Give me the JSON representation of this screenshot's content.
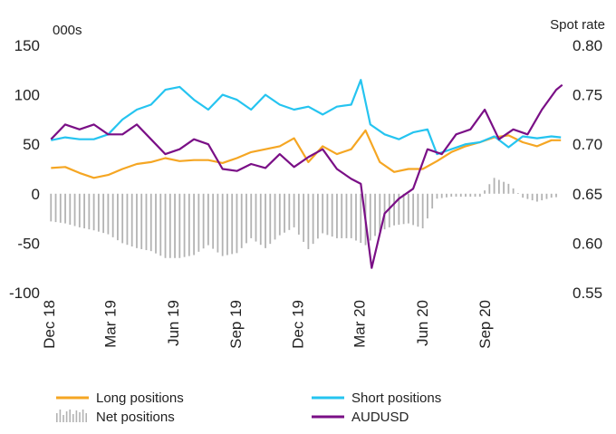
{
  "chart_data": {
    "type": "line",
    "left_axis_label": "000s",
    "right_axis_label": "Spot rate",
    "left_ylim": [
      -100,
      150
    ],
    "right_ylim": [
      0.55,
      0.8
    ],
    "left_ticks": [
      "150",
      "100",
      "50",
      "0",
      "-50",
      "-100"
    ],
    "right_ticks": [
      "0.80",
      "0.75",
      "0.70",
      "0.65",
      "0.60",
      "0.55"
    ],
    "xlim": [
      "2018-12-01",
      "2020-12-31"
    ],
    "x_ticks": [
      {
        "date": "2018-12-01",
        "label": "Dec 18"
      },
      {
        "date": "2019-03-01",
        "label": "Mar 19"
      },
      {
        "date": "2019-06-01",
        "label": "Jun 19"
      },
      {
        "date": "2019-09-01",
        "label": "Sep 19"
      },
      {
        "date": "2019-12-01",
        "label": "Dec 19"
      },
      {
        "date": "2020-03-01",
        "label": "Mar 20"
      },
      {
        "date": "2020-06-01",
        "label": "Jun 20"
      },
      {
        "date": "2020-09-01",
        "label": "Sep 20"
      }
    ],
    "grid": false,
    "legend_position": "bottom",
    "series": [
      {
        "name": "Long positions",
        "axis": "left",
        "style": "line",
        "color": "#f5a623",
        "points": [
          [
            "2018-12-04",
            26
          ],
          [
            "2018-12-25",
            27
          ],
          [
            "2019-01-15",
            21
          ],
          [
            "2019-02-05",
            16
          ],
          [
            "2019-02-26",
            19
          ],
          [
            "2019-03-19",
            25
          ],
          [
            "2019-04-09",
            30
          ],
          [
            "2019-04-30",
            32
          ],
          [
            "2019-05-21",
            36
          ],
          [
            "2019-06-11",
            33
          ],
          [
            "2019-07-02",
            34
          ],
          [
            "2019-07-23",
            34
          ],
          [
            "2019-08-13",
            31
          ],
          [
            "2019-09-03",
            36
          ],
          [
            "2019-09-24",
            42
          ],
          [
            "2019-10-15",
            45
          ],
          [
            "2019-11-05",
            48
          ],
          [
            "2019-11-26",
            56
          ],
          [
            "2019-12-17",
            32
          ],
          [
            "2020-01-07",
            48
          ],
          [
            "2020-01-28",
            40
          ],
          [
            "2020-02-18",
            45
          ],
          [
            "2020-03-10",
            64
          ],
          [
            "2020-03-31",
            32
          ],
          [
            "2020-04-21",
            22
          ],
          [
            "2020-05-12",
            25
          ],
          [
            "2020-06-02",
            25
          ],
          [
            "2020-06-23",
            33
          ],
          [
            "2020-07-14",
            42
          ],
          [
            "2020-08-04",
            48
          ],
          [
            "2020-08-25",
            52
          ],
          [
            "2020-09-15",
            57
          ],
          [
            "2020-10-06",
            59
          ],
          [
            "2020-10-27",
            52
          ],
          [
            "2020-11-17",
            48
          ],
          [
            "2020-12-08",
            54
          ],
          [
            "2020-12-22",
            54
          ]
        ]
      },
      {
        "name": "Short positions",
        "axis": "left",
        "style": "line",
        "color": "#25c4f0",
        "points": [
          [
            "2018-12-04",
            54
          ],
          [
            "2018-12-25",
            57
          ],
          [
            "2019-01-15",
            55
          ],
          [
            "2019-02-05",
            55
          ],
          [
            "2019-02-26",
            60
          ],
          [
            "2019-03-19",
            75
          ],
          [
            "2019-04-09",
            85
          ],
          [
            "2019-04-30",
            90
          ],
          [
            "2019-05-21",
            105
          ],
          [
            "2019-06-11",
            108
          ],
          [
            "2019-07-02",
            95
          ],
          [
            "2019-07-23",
            85
          ],
          [
            "2019-08-13",
            100
          ],
          [
            "2019-09-03",
            95
          ],
          [
            "2019-09-24",
            85
          ],
          [
            "2019-10-15",
            100
          ],
          [
            "2019-11-05",
            90
          ],
          [
            "2019-11-26",
            85
          ],
          [
            "2019-12-17",
            88
          ],
          [
            "2020-01-07",
            80
          ],
          [
            "2020-01-28",
            88
          ],
          [
            "2020-02-18",
            90
          ],
          [
            "2020-03-03",
            115
          ],
          [
            "2020-03-17",
            70
          ],
          [
            "2020-04-07",
            60
          ],
          [
            "2020-04-28",
            55
          ],
          [
            "2020-05-19",
            62
          ],
          [
            "2020-06-09",
            65
          ],
          [
            "2020-06-23",
            40
          ],
          [
            "2020-07-14",
            45
          ],
          [
            "2020-08-04",
            50
          ],
          [
            "2020-08-25",
            52
          ],
          [
            "2020-09-15",
            58
          ],
          [
            "2020-10-06",
            47
          ],
          [
            "2020-10-27",
            58
          ],
          [
            "2020-11-17",
            56
          ],
          [
            "2020-12-08",
            58
          ],
          [
            "2020-12-22",
            57
          ]
        ]
      },
      {
        "name": "Net positions",
        "axis": "left",
        "style": "bar",
        "color": "#b3b3b3",
        "points": [
          [
            "2018-12-04",
            -28
          ],
          [
            "2018-12-25",
            -30
          ],
          [
            "2019-01-15",
            -34
          ],
          [
            "2019-02-05",
            -37
          ],
          [
            "2019-02-26",
            -41
          ],
          [
            "2019-03-19",
            -50
          ],
          [
            "2019-04-09",
            -55
          ],
          [
            "2019-04-30",
            -58
          ],
          [
            "2019-05-21",
            -65
          ],
          [
            "2019-06-11",
            -65
          ],
          [
            "2019-07-02",
            -62
          ],
          [
            "2019-07-23",
            -52
          ],
          [
            "2019-08-13",
            -63
          ],
          [
            "2019-09-03",
            -60
          ],
          [
            "2019-09-24",
            -45
          ],
          [
            "2019-10-15",
            -55
          ],
          [
            "2019-11-05",
            -42
          ],
          [
            "2019-11-26",
            -34
          ],
          [
            "2019-12-17",
            -56
          ],
          [
            "2020-01-07",
            -40
          ],
          [
            "2020-01-28",
            -45
          ],
          [
            "2020-02-18",
            -45
          ],
          [
            "2020-03-10",
            -52
          ],
          [
            "2020-03-31",
            -38
          ],
          [
            "2020-04-21",
            -32
          ],
          [
            "2020-05-12",
            -30
          ],
          [
            "2020-06-02",
            -35
          ],
          [
            "2020-06-23",
            -5
          ],
          [
            "2020-07-14",
            -3
          ],
          [
            "2020-08-04",
            -3
          ],
          [
            "2020-08-25",
            -3
          ],
          [
            "2020-09-15",
            16
          ],
          [
            "2020-10-06",
            10
          ],
          [
            "2020-10-27",
            -4
          ],
          [
            "2020-11-17",
            -8
          ],
          [
            "2020-12-08",
            -4
          ],
          [
            "2020-12-22",
            -3
          ]
        ]
      },
      {
        "name": "AUDUSD",
        "axis": "right",
        "style": "line",
        "color": "#7a0f86",
        "points": [
          [
            "2018-12-04",
            0.705
          ],
          [
            "2018-12-25",
            0.72
          ],
          [
            "2019-01-15",
            0.715
          ],
          [
            "2019-02-05",
            0.72
          ],
          [
            "2019-02-26",
            0.71
          ],
          [
            "2019-03-19",
            0.71
          ],
          [
            "2019-04-09",
            0.72
          ],
          [
            "2019-04-30",
            0.705
          ],
          [
            "2019-05-21",
            0.69
          ],
          [
            "2019-06-11",
            0.695
          ],
          [
            "2019-07-02",
            0.705
          ],
          [
            "2019-07-23",
            0.7
          ],
          [
            "2019-08-13",
            0.675
          ],
          [
            "2019-09-03",
            0.673
          ],
          [
            "2019-09-24",
            0.68
          ],
          [
            "2019-10-15",
            0.676
          ],
          [
            "2019-11-05",
            0.69
          ],
          [
            "2019-11-26",
            0.677
          ],
          [
            "2019-12-17",
            0.687
          ],
          [
            "2020-01-07",
            0.695
          ],
          [
            "2020-01-28",
            0.675
          ],
          [
            "2020-02-18",
            0.665
          ],
          [
            "2020-03-03",
            0.66
          ],
          [
            "2020-03-19",
            0.575
          ],
          [
            "2020-04-07",
            0.63
          ],
          [
            "2020-04-28",
            0.645
          ],
          [
            "2020-05-19",
            0.655
          ],
          [
            "2020-06-09",
            0.695
          ],
          [
            "2020-06-30",
            0.69
          ],
          [
            "2020-07-21",
            0.71
          ],
          [
            "2020-08-11",
            0.715
          ],
          [
            "2020-09-01",
            0.735
          ],
          [
            "2020-09-22",
            0.705
          ],
          [
            "2020-10-13",
            0.715
          ],
          [
            "2020-11-03",
            0.71
          ],
          [
            "2020-11-24",
            0.735
          ],
          [
            "2020-12-15",
            0.755
          ],
          [
            "2020-12-24",
            0.76
          ]
        ]
      }
    ],
    "legend": [
      {
        "label": "Long positions",
        "swatch": "line",
        "color": "#f5a623"
      },
      {
        "label": "Short positions",
        "swatch": "line",
        "color": "#25c4f0"
      },
      {
        "label": "Net positions",
        "swatch": "bars",
        "color": "#b3b3b3"
      },
      {
        "label": "AUDUSD",
        "swatch": "line",
        "color": "#7a0f86"
      }
    ]
  }
}
